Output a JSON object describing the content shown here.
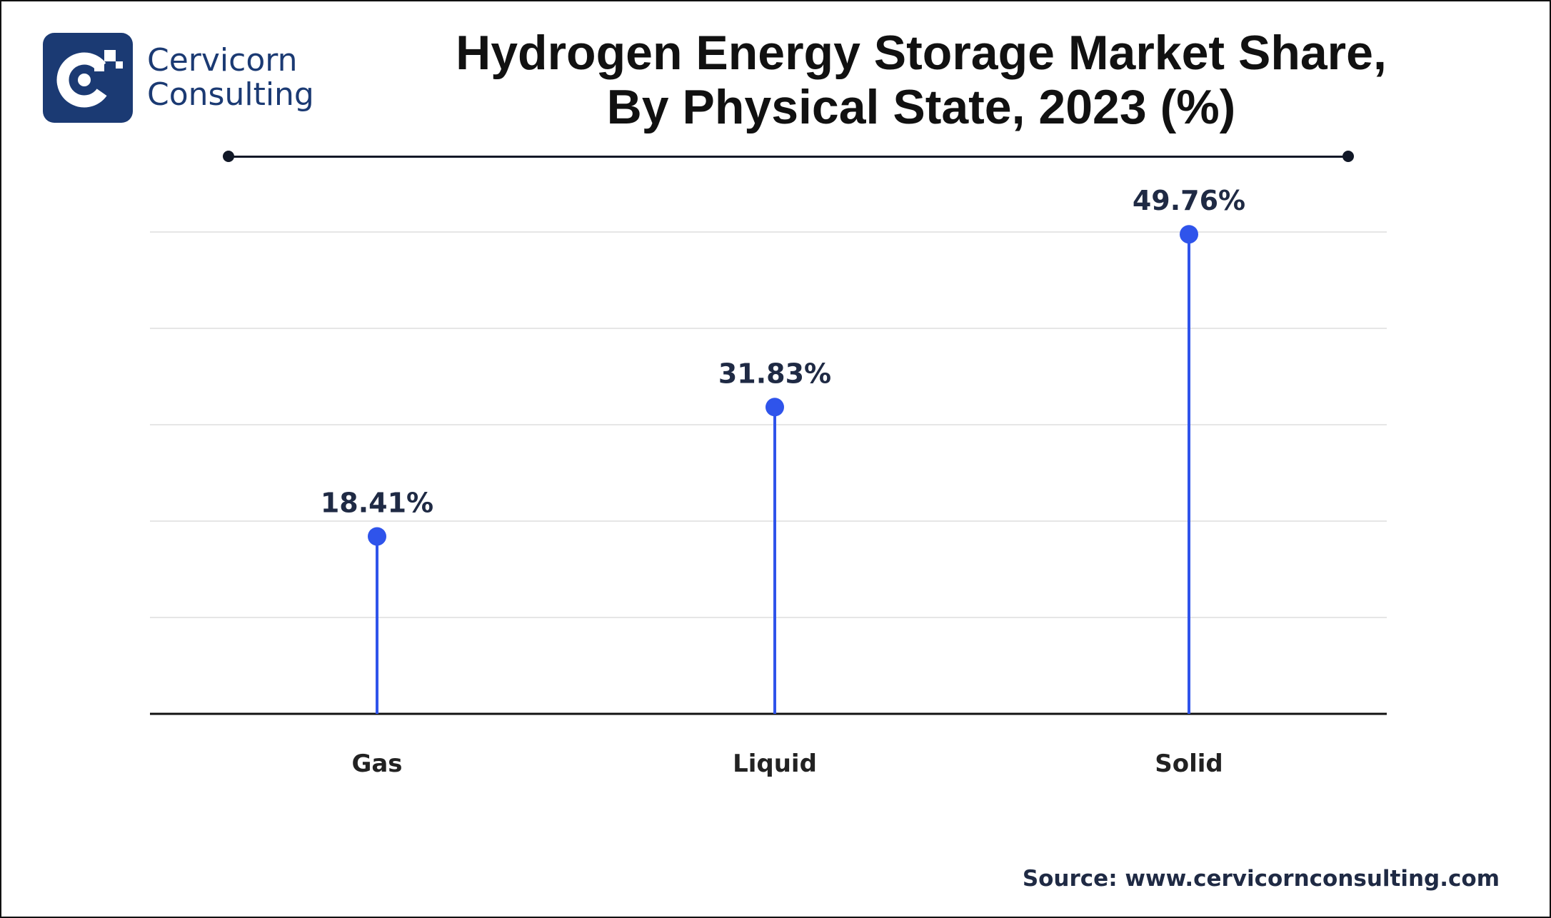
{
  "brand": {
    "name_line1": "Cervicorn",
    "name_line2": "Consulting",
    "color": "#1b3a73",
    "logo_icon": "cervicorn-c-logo-icon"
  },
  "title": {
    "line1": "Hydrogen Energy Storage Market Share,",
    "line2": "By Physical State, 2023 (%)"
  },
  "source": "Source: www.cervicornconsulting.com",
  "chart_data": {
    "type": "lollipop",
    "categories": [
      "Gas",
      "Liquid",
      "Solid"
    ],
    "values": [
      18.41,
      31.83,
      49.76
    ],
    "value_labels": [
      "18.41%",
      "31.83%",
      "49.76%"
    ],
    "unit": "%",
    "ylim": [
      0,
      50
    ],
    "grid": true,
    "legend": "none",
    "colors": {
      "stem": "#2f54eb",
      "marker": "#2f54eb",
      "grid": "#e6e6e6",
      "axis": "#111111",
      "label": "#1f2a44"
    }
  }
}
